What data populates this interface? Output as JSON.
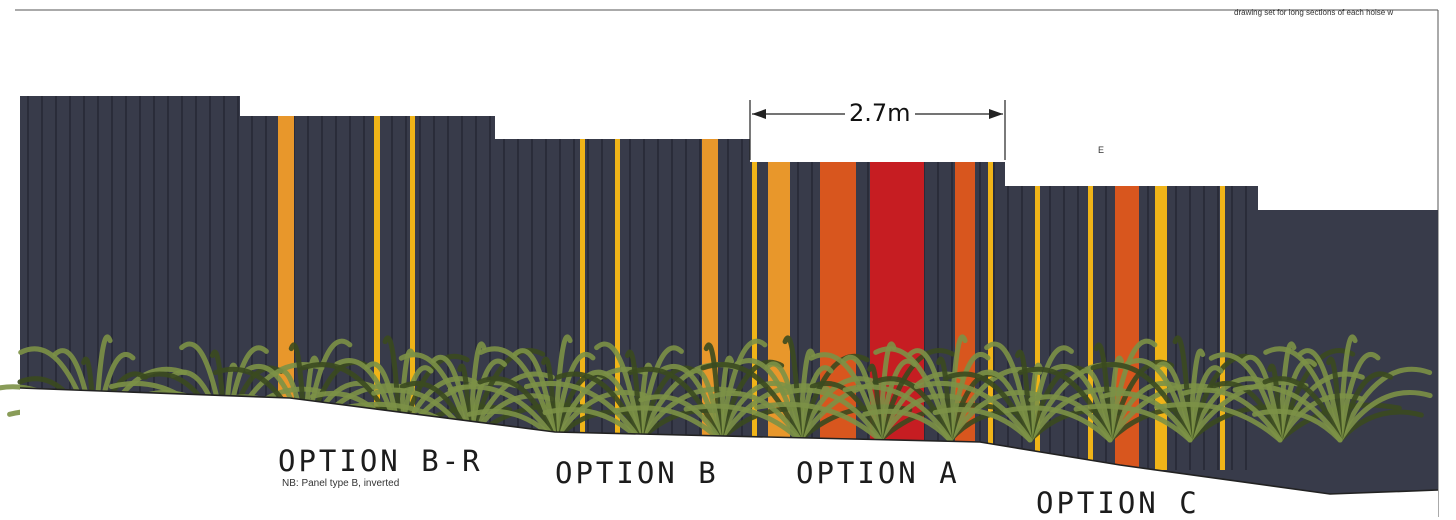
{
  "header": {
    "note": "drawing set for long sections of each hoise w"
  },
  "dimension": {
    "label": "2.7m"
  },
  "marker": {
    "label": "E"
  },
  "options": [
    {
      "label": "OPTION B-R",
      "note": "NB: Panel type B, inverted"
    },
    {
      "label": "OPTION B"
    },
    {
      "label": "OPTION A"
    },
    {
      "label": "OPTION C"
    }
  ],
  "colors": {
    "panel": "#383b4a",
    "panel_groove": "#232531",
    "amber": "#e8972b",
    "yellow": "#f0b418",
    "orange": "#d8561e",
    "red": "#c61d22",
    "foliage_light": "#7c9146",
    "foliage_dark": "#3b4a1f"
  }
}
